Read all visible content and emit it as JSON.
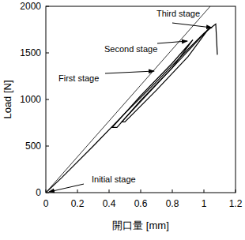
{
  "chart_data": {
    "type": "line",
    "xlabel": "開口量 [mm]",
    "ylabel": "Load [N]",
    "series": [
      {
        "color": "#000000",
        "line_style": "solid",
        "x": [
          0,
          1.04
        ],
        "values": [
          0,
          2000
        ]
      },
      {
        "color": "#000000",
        "line_style": "solid",
        "x": [
          0,
          0.1,
          0.3,
          0.5,
          0.7,
          0.9,
          1.0,
          1.06,
          1.075,
          1.08,
          1.085
        ],
        "values": [
          0,
          160,
          500,
          850,
          1190,
          1540,
          1710,
          1790,
          1810,
          1650,
          1480
        ]
      },
      {
        "color": "#000000",
        "line_style": "solid",
        "x": [
          0.93,
          0.8,
          0.6,
          0.42,
          0.45,
          0.6,
          0.8,
          0.93
        ],
        "values": [
          1640,
          1390,
          1040,
          700,
          700,
          990,
          1340,
          1640
        ]
      },
      {
        "color": "#000000",
        "line_style": "solid",
        "x": [
          1.03,
          0.9,
          0.7,
          0.48,
          0.5,
          0.7,
          0.9,
          1.03
        ],
        "values": [
          1760,
          1520,
          1160,
          760,
          760,
          1100,
          1460,
          1760
        ]
      }
    ],
    "annotations": [
      {
        "text": "Third stage",
        "x": 1.05,
        "y": 1771
      },
      {
        "text": "Second stage",
        "x": 0.895,
        "y": 1627
      },
      {
        "text": "First stage",
        "x": 0.685,
        "y": 1305
      },
      {
        "text": "Initial stage",
        "x": 0.02,
        "y": 8
      }
    ],
    "xlim": [
      0,
      1.2
    ],
    "ylim": [
      0,
      2000
    ],
    "xticks": [
      0,
      0.2,
      0.4,
      0.6,
      0.8,
      1,
      1.2
    ],
    "yticks": [
      0,
      500,
      1000,
      1500,
      2000
    ],
    "grid": false
  }
}
